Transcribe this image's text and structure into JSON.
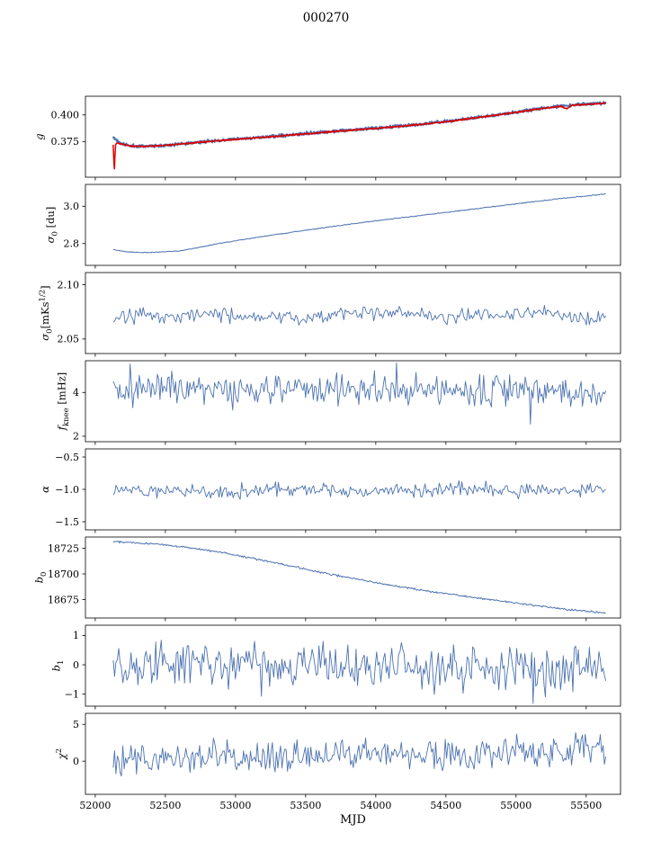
{
  "title": "000270",
  "xlabel": "MJD",
  "colors": {
    "primary": "#4c72b0",
    "fit": "#dd0000",
    "axis": "#000000",
    "background": "#ffffff"
  },
  "x_axis": {
    "lim": [
      51930,
      55745
    ],
    "ticks": [
      52000,
      52500,
      53000,
      53500,
      54000,
      54500,
      55000,
      55500
    ],
    "tick_labels": [
      "52000",
      "52500",
      "53000",
      "53500",
      "54000",
      "54500",
      "55000",
      "55500"
    ],
    "data_range": [
      52128,
      55640
    ]
  },
  "chart_data": [
    {
      "id": "g",
      "type": "line",
      "ylabel_text": "g",
      "ylabel_parts": [
        {
          "t": "g",
          "i": true
        }
      ],
      "ylim": [
        0.3415,
        0.4175
      ],
      "yticks": [
        0.375,
        0.4
      ],
      "ytick_labels": [
        "0.375",
        "0.400"
      ],
      "series": [
        {
          "name": "gain-data",
          "color": "primary",
          "seed": 11,
          "n": 1200,
          "noise": 0.0007,
          "width": 1.8,
          "trend": [
            [
              52128,
              0.379
            ],
            [
              52180,
              0.3732
            ],
            [
              52250,
              0.371
            ],
            [
              52350,
              0.3706
            ],
            [
              52500,
              0.3716
            ],
            [
              52700,
              0.374
            ],
            [
              52900,
              0.3762
            ],
            [
              53100,
              0.3782
            ],
            [
              53300,
              0.3802
            ],
            [
              53500,
              0.3824
            ],
            [
              53700,
              0.3846
            ],
            [
              53900,
              0.3866
            ],
            [
              54100,
              0.3886
            ],
            [
              54300,
              0.391
            ],
            [
              54500,
              0.3938
            ],
            [
              54700,
              0.3972
            ],
            [
              54900,
              0.4008
            ],
            [
              55050,
              0.4035
            ],
            [
              55200,
              0.4065
            ],
            [
              55350,
              0.4088
            ],
            [
              55500,
              0.41
            ],
            [
              55640,
              0.4113
            ]
          ]
        },
        {
          "name": "gain-fit",
          "color": "fit",
          "seed": 12,
          "n": 1200,
          "noise": 0.00028,
          "width": 1.5,
          "trend": [
            [
              52126,
              0.378
            ],
            [
              52130,
              0.366
            ],
            [
              52133,
              0.356
            ],
            [
              52136,
              0.3465
            ],
            [
              52140,
              0.36
            ],
            [
              52145,
              0.372
            ],
            [
              52152,
              0.374
            ],
            [
              52180,
              0.373
            ],
            [
              52250,
              0.3708
            ],
            [
              52350,
              0.3704
            ],
            [
              52500,
              0.3714
            ],
            [
              52700,
              0.3738
            ],
            [
              52900,
              0.376
            ],
            [
              53100,
              0.378
            ],
            [
              53300,
              0.38
            ],
            [
              53500,
              0.3822
            ],
            [
              53700,
              0.3844
            ],
            [
              53900,
              0.3864
            ],
            [
              54100,
              0.3884
            ],
            [
              54300,
              0.3908
            ],
            [
              54500,
              0.3936
            ],
            [
              54700,
              0.397
            ],
            [
              54900,
              0.4006
            ],
            [
              55050,
              0.4033
            ],
            [
              55200,
              0.4063
            ],
            [
              55320,
              0.4082
            ],
            [
              55360,
              0.4058
            ],
            [
              55400,
              0.409
            ],
            [
              55500,
              0.4098
            ],
            [
              55640,
              0.4111
            ]
          ]
        }
      ]
    },
    {
      "id": "sigma0-du",
      "type": "line",
      "ylabel_text": "sigma_0 [du]",
      "ylabel_parts": [
        {
          "t": "σ",
          "i": true
        },
        {
          "t": "0",
          "sub": true
        },
        {
          "t": " [du]"
        }
      ],
      "ylim": [
        2.683,
        3.117
      ],
      "yticks": [
        2.8,
        3.0
      ],
      "ytick_labels": [
        "2.8",
        "3.0"
      ],
      "series": [
        {
          "name": "sigma0-du-curve",
          "color": "primary",
          "seed": 21,
          "n": 600,
          "noise": 0.0012,
          "width": 1.0,
          "trend": [
            [
              52128,
              2.768
            ],
            [
              52210,
              2.757
            ],
            [
              52330,
              2.7515
            ],
            [
              52470,
              2.754
            ],
            [
              52620,
              2.7625
            ],
            [
              52880,
              2.8
            ],
            [
              53150,
              2.833
            ],
            [
              53450,
              2.866
            ],
            [
              53780,
              2.9
            ],
            [
              54100,
              2.931
            ],
            [
              54450,
              2.962
            ],
            [
              54860,
              3.0
            ],
            [
              55100,
              3.022
            ],
            [
              55350,
              3.044
            ],
            [
              55500,
              3.055
            ],
            [
              55640,
              3.066
            ]
          ]
        }
      ]
    },
    {
      "id": "sigma0-mks",
      "type": "line",
      "ylabel_text": "sigma_0 [mK s^(1/2)]",
      "ylabel_parts": [
        {
          "t": "σ",
          "i": true
        },
        {
          "t": "0",
          "sub": true
        },
        {
          "t": "[mKs"
        },
        {
          "t": "1/2",
          "sup": true
        },
        {
          "t": "]"
        }
      ],
      "ylim": [
        2.0366,
        2.1112
      ],
      "yticks": [
        2.05,
        2.1
      ],
      "ytick_labels": [
        "2.05",
        "2.10"
      ],
      "series": [
        {
          "name": "sigma0-mks-curve",
          "color": "primary",
          "seed": 31,
          "n": 330,
          "noise": 0.0035,
          "wander": 0.002,
          "width": 0.9,
          "trend": [
            [
              52128,
              2.0705
            ],
            [
              52400,
              2.072
            ],
            [
              53000,
              2.0715
            ],
            [
              54000,
              2.0725
            ],
            [
              55000,
              2.0715
            ],
            [
              55640,
              2.0705
            ]
          ]
        }
      ]
    },
    {
      "id": "fknee",
      "type": "line",
      "ylabel_text": "f_knee [mHz]",
      "ylabel_parts": [
        {
          "t": "f",
          "i": true
        },
        {
          "t": "knee",
          "sub": true
        },
        {
          "t": " [mHz]"
        }
      ],
      "ylim": [
        1.75,
        5.45
      ],
      "yticks": [
        2,
        4
      ],
      "ytick_labels": [
        "2",
        "4"
      ],
      "series": [
        {
          "name": "fknee-curve",
          "color": "primary",
          "seed": 41,
          "n": 380,
          "noise": 0.34,
          "wander": 0.06,
          "width": 0.9,
          "trend": [
            [
              52128,
              4.2
            ],
            [
              53000,
              4.12
            ],
            [
              54000,
              4.1
            ],
            [
              55000,
              4.05
            ],
            [
              55640,
              4.0
            ]
          ],
          "spikes": [
            [
              52250,
              5.3
            ],
            [
              54150,
              5.35
            ],
            [
              55100,
              2.55
            ]
          ]
        }
      ]
    },
    {
      "id": "alpha",
      "type": "line",
      "ylabel_text": "alpha",
      "ylabel_parts": [
        {
          "t": "α",
          "i": true
        }
      ],
      "ylim": [
        -1.625,
        -0.375
      ],
      "yticks": [
        -0.5,
        -1.0,
        -1.5
      ],
      "ytick_labels": [
        "−0.5",
        "−1.0",
        "−1.5"
      ],
      "series": [
        {
          "name": "alpha-curve",
          "color": "primary",
          "seed": 51,
          "n": 350,
          "noise": 0.05,
          "wander": 0.008,
          "width": 0.9,
          "trend": [
            [
              52128,
              -1.02
            ],
            [
              55640,
              -1.01
            ]
          ]
        }
      ]
    },
    {
      "id": "b0",
      "type": "line",
      "ylabel_text": "b_0",
      "ylabel_parts": [
        {
          "t": "b",
          "i": true
        },
        {
          "t": "0",
          "sub": true
        }
      ],
      "ylim": [
        18657,
        18736
      ],
      "yticks": [
        18675,
        18700,
        18725
      ],
      "ytick_labels": [
        "18675",
        "18700",
        "18725"
      ],
      "series": [
        {
          "name": "b0-curve",
          "color": "primary",
          "seed": 61,
          "n": 550,
          "noise": 0.45,
          "width": 1.0,
          "trend": [
            [
              52128,
              18731.5
            ],
            [
              52400,
              18729.5
            ],
            [
              52650,
              18726
            ],
            [
              52900,
              18721
            ],
            [
              53150,
              18714.5
            ],
            [
              53400,
              18707.5
            ],
            [
              53650,
              18700.5
            ],
            [
              53900,
              18694
            ],
            [
              54150,
              18688
            ],
            [
              54400,
              18682.5
            ],
            [
              54650,
              18678
            ],
            [
              54900,
              18673.5
            ],
            [
              55150,
              18669
            ],
            [
              55350,
              18665.5
            ],
            [
              55640,
              18662
            ]
          ]
        }
      ]
    },
    {
      "id": "b1",
      "type": "line",
      "ylabel_text": "b_1",
      "ylabel_parts": [
        {
          "t": "b",
          "i": true
        },
        {
          "t": "1",
          "sub": true
        }
      ],
      "ylim": [
        -1.41,
        1.35
      ],
      "yticks": [
        -1,
        0,
        1
      ],
      "ytick_labels": [
        "−1",
        "0",
        "1"
      ],
      "series": [
        {
          "name": "b1-curve",
          "color": "primary",
          "seed": 71,
          "n": 360,
          "noise": 0.37,
          "wander": 0.04,
          "width": 0.9,
          "trend": [
            [
              52128,
              -0.03
            ],
            [
              55640,
              -0.05
            ]
          ],
          "spikes": [
            [
              55120,
              -1.32
            ]
          ]
        }
      ]
    },
    {
      "id": "chi2",
      "type": "line",
      "ylabel_text": "chi^2",
      "ylabel_parts": [
        {
          "t": "χ",
          "i": true
        },
        {
          "t": "2",
          "sup": true
        }
      ],
      "ylim": [
        -4.5,
        6.5
      ],
      "yticks": [
        0,
        5
      ],
      "ytick_labels": [
        "0",
        "5"
      ],
      "series": [
        {
          "name": "chi2-curve",
          "color": "primary",
          "seed": 81,
          "n": 360,
          "noise": 1.05,
          "wander": 0.15,
          "width": 0.9,
          "trend": [
            [
              52128,
              0.35
            ],
            [
              53000,
              0.5
            ],
            [
              54000,
              0.85
            ],
            [
              54800,
              1.15
            ],
            [
              55640,
              1.45
            ]
          ]
        }
      ]
    }
  ]
}
